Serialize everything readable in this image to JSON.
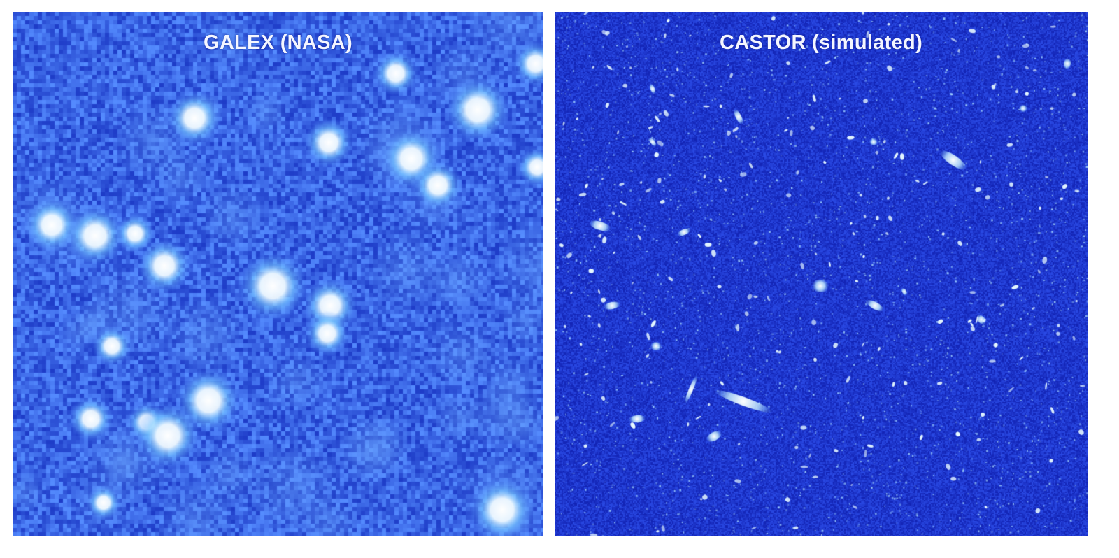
{
  "panels": [
    {
      "id": "galex",
      "title": "GALEX (NASA)",
      "background": "#2f52e6",
      "highlight": "#ffffff",
      "accent": "#6ab8ff"
    },
    {
      "id": "castor",
      "title": "CASTOR (simulated)",
      "background": "#1c2fc8",
      "highlight": "#ffffff",
      "accent": "#8fd0ff"
    }
  ]
}
